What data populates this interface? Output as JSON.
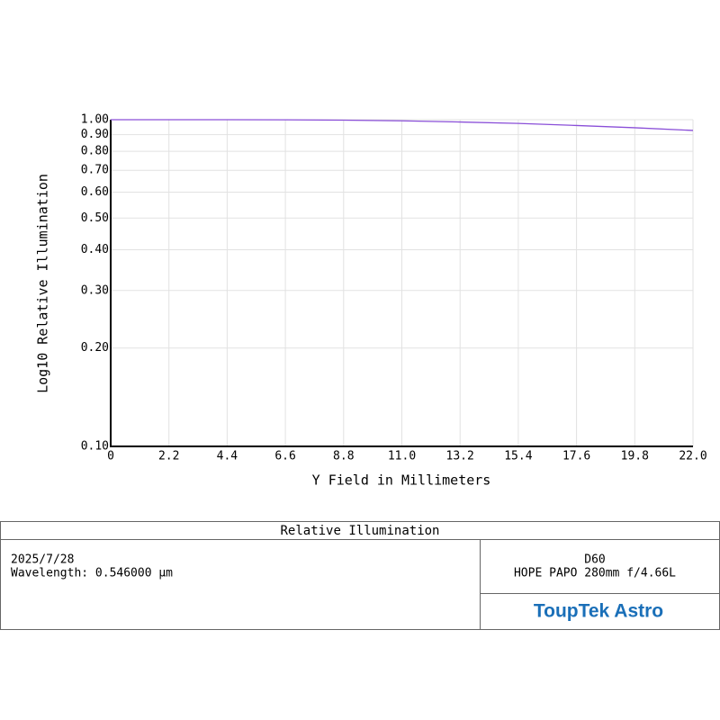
{
  "chart_data": {
    "type": "line",
    "title": "Relative Illumination",
    "x_label": "Y Field in Millimeters",
    "y_label": "Log10 Relative Illumination",
    "x": [
      0,
      2.2,
      4.4,
      6.6,
      8.8,
      11,
      13.2,
      15.4,
      17.6,
      19.8,
      22
    ],
    "series": [
      {
        "name": "Relative Illumination",
        "color": "#8a4fd8",
        "values": [
          1.0,
          1.0,
          1.0,
          0.999,
          0.997,
          0.992,
          0.984,
          0.974,
          0.96,
          0.945,
          0.927
        ]
      }
    ],
    "xlim": [
      0,
      22
    ],
    "ylim": [
      0.1,
      1
    ],
    "xticks": [
      0,
      2.2,
      4.4,
      6.6,
      8.8,
      {
        "value": 11,
        "label": "11.0"
      },
      13.2,
      15.4,
      17.6,
      19.8,
      {
        "value": 22,
        "label": "22.0"
      }
    ],
    "yticks": [
      {
        "value": 1,
        "label": "1.00"
      },
      {
        "value": 0.9,
        "label": "0.90"
      },
      {
        "value": 0.8,
        "label": "0.80"
      },
      {
        "value": 0.7,
        "label": "0.70"
      },
      {
        "value": 0.6,
        "label": "0.60"
      },
      {
        "value": 0.5,
        "label": "0.50"
      },
      {
        "value": 0.4,
        "label": "0.40"
      },
      {
        "value": 0.3,
        "label": "0.30"
      },
      {
        "value": 0.2,
        "label": "0.20"
      },
      {
        "value": 0.1,
        "label": "0.10"
      }
    ],
    "ylog": true,
    "grid": true
  },
  "footer": {
    "date": "2025/7/28",
    "wavelength": "Wavelength: 0.546000 µm",
    "name": "D60",
    "lens": "HOPE PAPO 280mm f/4.66L",
    "logo": "ToupTek Astro"
  }
}
